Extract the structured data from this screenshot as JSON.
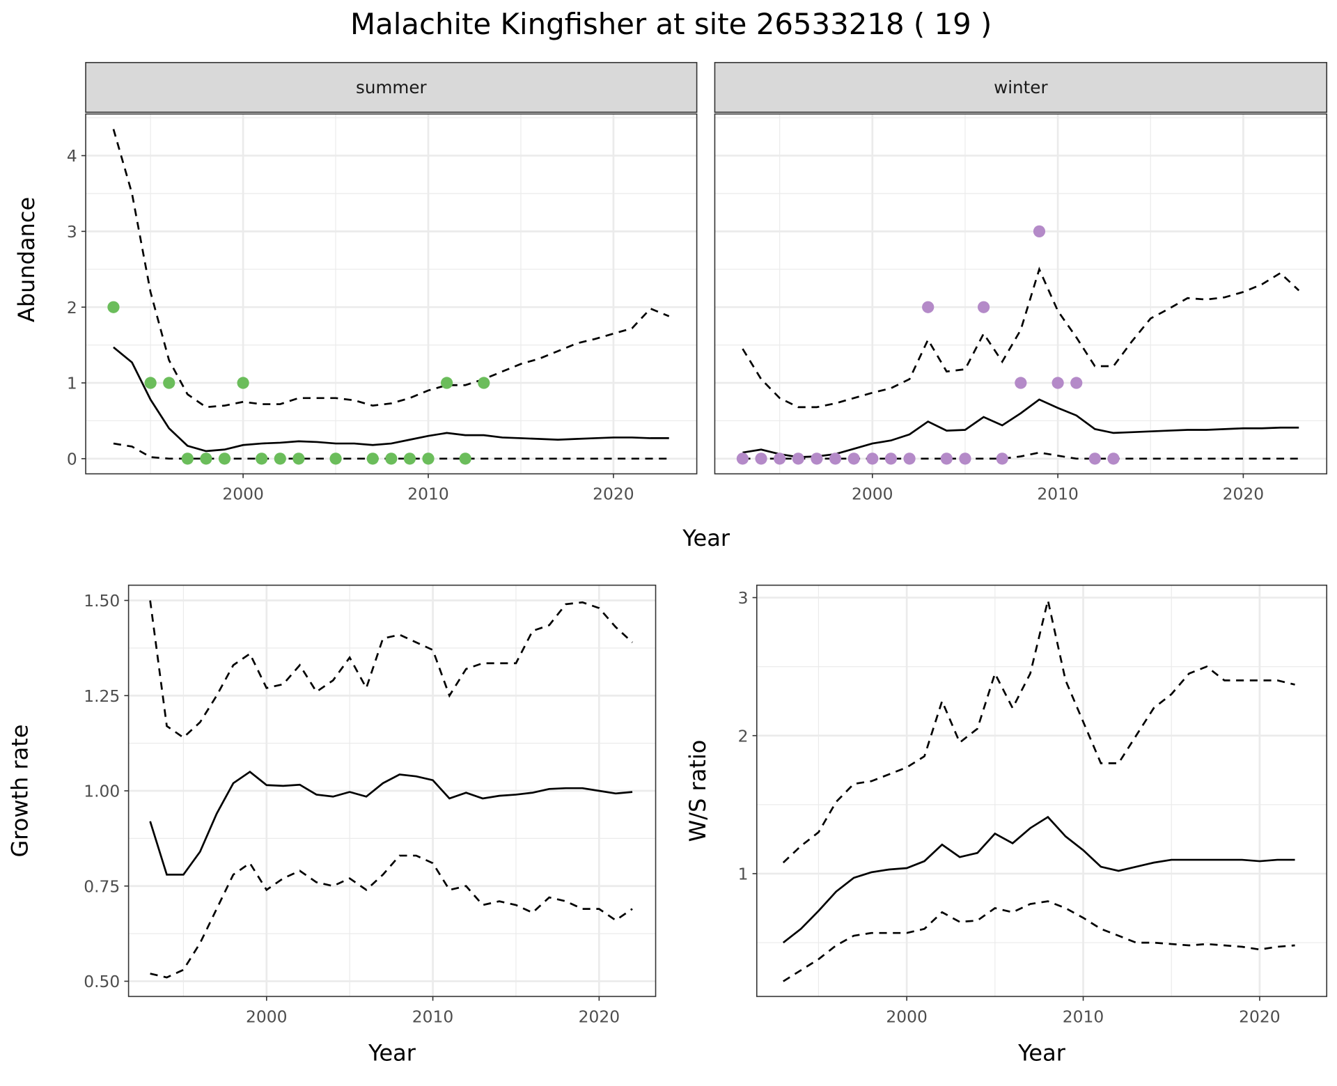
{
  "title": "Malachite Kingfisher at site 26533218 ( 19 )",
  "chart_data": [
    {
      "type": "line",
      "panel": "summer",
      "strip_label": "summer",
      "xlabel": "Year",
      "ylabel": "Abundance",
      "xlim": [
        1991.5,
        2024.5
      ],
      "ylim": [
        -0.2,
        4.55
      ],
      "x_ticks": [
        2000,
        2010,
        2020
      ],
      "y_ticks": [
        0,
        1,
        2,
        3,
        4
      ],
      "grid": true,
      "point_color": "#6bbd5b",
      "years": [
        1993,
        1994,
        1995,
        1996,
        1997,
        1998,
        1999,
        2000,
        2001,
        2002,
        2003,
        2004,
        2005,
        2006,
        2007,
        2008,
        2009,
        2010,
        2011,
        2012,
        2013,
        2014,
        2015,
        2016,
        2017,
        2018,
        2019,
        2020,
        2021,
        2022,
        2023
      ],
      "mean": [
        1.47,
        1.27,
        0.78,
        0.4,
        0.17,
        0.1,
        0.12,
        0.18,
        0.2,
        0.21,
        0.23,
        0.22,
        0.2,
        0.2,
        0.18,
        0.2,
        0.25,
        0.3,
        0.34,
        0.31,
        0.31,
        0.28,
        0.27,
        0.26,
        0.25,
        0.26,
        0.27,
        0.28,
        0.28,
        0.27,
        0.27
      ],
      "upper": [
        4.35,
        3.5,
        2.2,
        1.3,
        0.85,
        0.68,
        0.7,
        0.75,
        0.72,
        0.72,
        0.8,
        0.8,
        0.8,
        0.77,
        0.7,
        0.73,
        0.8,
        0.9,
        0.97,
        0.97,
        1.05,
        1.15,
        1.25,
        1.32,
        1.42,
        1.52,
        1.58,
        1.65,
        1.72,
        1.98,
        1.88
      ],
      "lower": [
        0.2,
        0.16,
        0.02,
        0,
        0,
        0,
        0,
        0,
        0,
        0,
        0,
        0,
        0,
        0,
        0,
        0,
        0,
        0,
        0,
        0,
        0,
        0,
        0,
        0,
        0,
        0,
        0,
        0,
        0,
        0,
        0
      ],
      "points": [
        [
          1993,
          2
        ],
        [
          1995,
          1
        ],
        [
          1996,
          1
        ],
        [
          1997,
          0
        ],
        [
          1998,
          0
        ],
        [
          1999,
          0
        ],
        [
          2000,
          1
        ],
        [
          2001,
          0
        ],
        [
          2002,
          0
        ],
        [
          2003,
          0
        ],
        [
          2005,
          0
        ],
        [
          2007,
          0
        ],
        [
          2008,
          0
        ],
        [
          2009,
          0
        ],
        [
          2010,
          0
        ],
        [
          2011,
          1
        ],
        [
          2012,
          0
        ],
        [
          2013,
          1
        ]
      ]
    },
    {
      "type": "line",
      "panel": "winter",
      "strip_label": "winter",
      "xlabel": "Year",
      "ylabel": "Abundance",
      "xlim": [
        1991.5,
        2024.5
      ],
      "ylim": [
        -0.2,
        4.55
      ],
      "x_ticks": [
        2000,
        2010,
        2020
      ],
      "y_ticks": [
        0,
        1,
        2,
        3,
        4
      ],
      "grid": true,
      "point_color": "#b48ac8",
      "years": [
        1993,
        1994,
        1995,
        1996,
        1997,
        1998,
        1999,
        2000,
        2001,
        2002,
        2003,
        2004,
        2005,
        2006,
        2007,
        2008,
        2009,
        2010,
        2011,
        2012,
        2013,
        2014,
        2015,
        2016,
        2017,
        2018,
        2019,
        2020,
        2021,
        2022,
        2023
      ],
      "mean": [
        0.08,
        0.12,
        0.06,
        0.02,
        0.03,
        0.06,
        0.13,
        0.2,
        0.24,
        0.32,
        0.49,
        0.37,
        0.38,
        0.55,
        0.44,
        0.6,
        0.78,
        0.67,
        0.57,
        0.39,
        0.34,
        0.35,
        0.36,
        0.37,
        0.38,
        0.38,
        0.39,
        0.4,
        0.4,
        0.41,
        0.41
      ],
      "upper": [
        1.45,
        1.05,
        0.8,
        0.68,
        0.68,
        0.73,
        0.8,
        0.87,
        0.93,
        1.05,
        1.57,
        1.15,
        1.18,
        1.65,
        1.28,
        1.7,
        2.5,
        1.95,
        1.6,
        1.22,
        1.22,
        1.55,
        1.85,
        1.98,
        2.12,
        2.1,
        2.13,
        2.2,
        2.3,
        2.45,
        2.22
      ],
      "lower": [
        0,
        0,
        0,
        0,
        0,
        0,
        0,
        0,
        0,
        0,
        0,
        0,
        0,
        0,
        0,
        0.03,
        0.08,
        0.04,
        0,
        0,
        0,
        0,
        0,
        0,
        0,
        0,
        0,
        0,
        0,
        0,
        0
      ],
      "points": [
        [
          1993,
          0
        ],
        [
          1994,
          0
        ],
        [
          1995,
          0
        ],
        [
          1996,
          0
        ],
        [
          1997,
          0
        ],
        [
          1998,
          0
        ],
        [
          1999,
          0
        ],
        [
          2000,
          0
        ],
        [
          2001,
          0
        ],
        [
          2002,
          0
        ],
        [
          2003,
          2
        ],
        [
          2004,
          0
        ],
        [
          2005,
          0
        ],
        [
          2006,
          2
        ],
        [
          2007,
          0
        ],
        [
          2008,
          1
        ],
        [
          2009,
          3
        ],
        [
          2010,
          1
        ],
        [
          2011,
          1
        ],
        [
          2012,
          0
        ],
        [
          2013,
          0
        ]
      ]
    },
    {
      "type": "line",
      "panel": "growth",
      "xlabel": "Year",
      "ylabel": "Growth rate",
      "xlim": [
        1991.7,
        2023.4
      ],
      "ylim": [
        0.46,
        1.54
      ],
      "x_ticks": [
        2000,
        2010,
        2020
      ],
      "y_ticks": [
        0.5,
        0.75,
        1.0,
        1.25,
        1.5
      ],
      "y_tick_labels": [
        "0.50",
        "0.75",
        "1.00",
        "1.25",
        "1.50"
      ],
      "grid": true,
      "years": [
        1993,
        1994,
        1995,
        1996,
        1997,
        1998,
        1999,
        2000,
        2001,
        2002,
        2003,
        2004,
        2005,
        2006,
        2007,
        2008,
        2009,
        2010,
        2011,
        2012,
        2013,
        2014,
        2015,
        2016,
        2017,
        2018,
        2019,
        2020,
        2021,
        2022
      ],
      "mean": [
        0.92,
        0.78,
        0.78,
        0.84,
        0.94,
        1.02,
        1.05,
        1.015,
        1.013,
        1.016,
        0.99,
        0.985,
        0.997,
        0.985,
        1.02,
        1.043,
        1.038,
        1.028,
        0.98,
        0.995,
        0.98,
        0.987,
        0.99,
        0.995,
        1.005,
        1.007,
        1.007,
        1.0,
        0.993,
        0.997
      ],
      "upper": [
        1.5,
        1.17,
        1.14,
        1.18,
        1.25,
        1.33,
        1.36,
        1.27,
        1.28,
        1.33,
        1.26,
        1.29,
        1.35,
        1.27,
        1.4,
        1.41,
        1.39,
        1.37,
        1.25,
        1.32,
        1.335,
        1.335,
        1.335,
        1.42,
        1.435,
        1.49,
        1.495,
        1.48,
        1.43,
        1.39
      ],
      "lower": [
        0.52,
        0.51,
        0.53,
        0.6,
        0.69,
        0.78,
        0.81,
        0.74,
        0.77,
        0.79,
        0.76,
        0.75,
        0.77,
        0.74,
        0.78,
        0.83,
        0.83,
        0.81,
        0.74,
        0.75,
        0.7,
        0.71,
        0.7,
        0.68,
        0.72,
        0.71,
        0.69,
        0.69,
        0.66,
        0.69
      ]
    },
    {
      "type": "line",
      "panel": "ws_ratio",
      "xlabel": "Year",
      "ylabel": "W/S ratio",
      "xlim": [
        1991.5,
        2023.8
      ],
      "ylim": [
        0.11,
        3.09
      ],
      "x_ticks": [
        2000,
        2010,
        2020
      ],
      "y_ticks": [
        1,
        2,
        3
      ],
      "grid": true,
      "years": [
        1993,
        1994,
        1995,
        1996,
        1997,
        1998,
        1999,
        2000,
        2001,
        2002,
        2003,
        2004,
        2005,
        2006,
        2007,
        2008,
        2009,
        2010,
        2011,
        2012,
        2013,
        2014,
        2015,
        2016,
        2017,
        2018,
        2019,
        2020,
        2021,
        2022
      ],
      "mean": [
        0.5,
        0.6,
        0.73,
        0.87,
        0.97,
        1.01,
        1.03,
        1.04,
        1.09,
        1.21,
        1.12,
        1.15,
        1.29,
        1.22,
        1.33,
        1.41,
        1.27,
        1.17,
        1.05,
        1.02,
        1.05,
        1.08,
        1.1,
        1.1,
        1.1,
        1.1,
        1.1,
        1.09,
        1.1,
        1.1
      ],
      "upper": [
        1.08,
        1.2,
        1.3,
        1.52,
        1.65,
        1.67,
        1.72,
        1.77,
        1.85,
        2.25,
        1.95,
        2.05,
        2.45,
        2.2,
        2.45,
        2.98,
        2.4,
        2.1,
        1.8,
        1.8,
        2.0,
        2.2,
        2.3,
        2.45,
        2.5,
        2.4,
        2.4,
        2.4,
        2.4,
        2.37
      ],
      "lower": [
        0.22,
        0.3,
        0.38,
        0.48,
        0.55,
        0.57,
        0.57,
        0.57,
        0.6,
        0.72,
        0.65,
        0.66,
        0.75,
        0.72,
        0.78,
        0.8,
        0.75,
        0.68,
        0.6,
        0.55,
        0.5,
        0.5,
        0.49,
        0.48,
        0.49,
        0.48,
        0.47,
        0.45,
        0.47,
        0.48
      ]
    }
  ]
}
